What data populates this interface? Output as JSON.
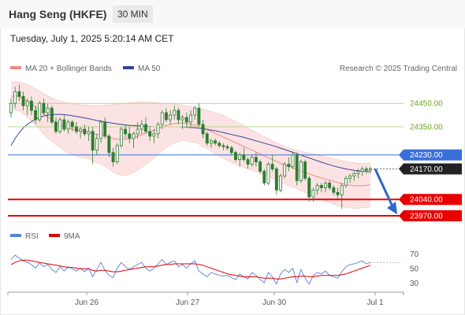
{
  "header": {
    "title": "Hang Seng (HKFE)",
    "timeframe": "30 MIN",
    "datetime": "Tuesday, July 1, 2025 5:20:14 AM CET"
  },
  "legend": {
    "bollinger": "MA 20 + Bollinger Bands",
    "ma50": "MA 50",
    "credit": "Research © 2025 Trading Central",
    "rsi": "RSI",
    "rsi_ma": "9MA"
  },
  "colors": {
    "bollinger": "#f08a8a",
    "band_fill": "#fbdada",
    "ma50": "#33449a",
    "support": "#e80000",
    "resistance": "#b7d98c",
    "pivot": "#3b6fd8",
    "candle_up": "#2e7d32",
    "candle_down": "#2e7d32",
    "rsi": "#5a7fd8",
    "rsi_ma": "#e00000"
  },
  "chart_data": {
    "type": "candlestick",
    "x_labels": [
      "Jun 26",
      "Jun 27",
      "Jun 30",
      "Jul 1"
    ],
    "ylim": [
      23950,
      24555
    ],
    "levels": [
      {
        "value": 24450,
        "label": "24450.00",
        "kind": "resistance"
      },
      {
        "value": 24350,
        "label": "24350.00",
        "kind": "resistance"
      },
      {
        "value": 24230,
        "label": "24230.00",
        "kind": "pivot"
      },
      {
        "value": 24170,
        "label": "24170.00",
        "kind": "current"
      },
      {
        "value": 24040,
        "label": "24040.00",
        "kind": "support"
      },
      {
        "value": 23970,
        "label": "23970.00",
        "kind": "support"
      }
    ],
    "forecast": {
      "from": 24170,
      "to": 23990
    },
    "candles": [
      [
        24410,
        24470,
        24390,
        24450
      ],
      [
        24450,
        24520,
        24430,
        24500
      ],
      [
        24500,
        24530,
        24460,
        24480
      ],
      [
        24480,
        24500,
        24420,
        24440
      ],
      [
        24440,
        24470,
        24400,
        24460
      ],
      [
        24460,
        24480,
        24400,
        24420
      ],
      [
        24420,
        24440,
        24360,
        24380
      ],
      [
        24380,
        24460,
        24370,
        24450
      ],
      [
        24450,
        24470,
        24400,
        24410
      ],
      [
        24410,
        24450,
        24370,
        24430
      ],
      [
        24430,
        24440,
        24360,
        24370
      ],
      [
        24370,
        24390,
        24320,
        24330
      ],
      [
        24330,
        24390,
        24320,
        24380
      ],
      [
        24380,
        24400,
        24330,
        24340
      ],
      [
        24340,
        24380,
        24320,
        24370
      ],
      [
        24370,
        24380,
        24330,
        24350
      ],
      [
        24350,
        24370,
        24320,
        24330
      ],
      [
        24330,
        24350,
        24300,
        24340
      ],
      [
        24340,
        24360,
        24310,
        24320
      ],
      [
        24320,
        24350,
        24290,
        24330
      ],
      [
        24330,
        24350,
        24190,
        24250
      ],
      [
        24250,
        24320,
        24230,
        24300
      ],
      [
        24300,
        24380,
        24280,
        24370
      ],
      [
        24370,
        24390,
        24300,
        24310
      ],
      [
        24310,
        24320,
        24220,
        24240
      ],
      [
        24240,
        24260,
        24180,
        24200
      ],
      [
        24200,
        24280,
        24190,
        24270
      ],
      [
        24270,
        24350,
        24260,
        24340
      ],
      [
        24340,
        24360,
        24300,
        24320
      ],
      [
        24320,
        24350,
        24280,
        24300
      ],
      [
        24300,
        24330,
        24260,
        24320
      ],
      [
        24320,
        24370,
        24300,
        24340
      ],
      [
        24340,
        24380,
        24320,
        24360
      ],
      [
        24360,
        24390,
        24320,
        24330
      ],
      [
        24330,
        24350,
        24290,
        24310
      ],
      [
        24310,
        24340,
        24280,
        24320
      ],
      [
        24320,
        24370,
        24300,
        24360
      ],
      [
        24360,
        24420,
        24340,
        24410
      ],
      [
        24410,
        24430,
        24370,
        24380
      ],
      [
        24380,
        24420,
        24360,
        24400
      ],
      [
        24400,
        24440,
        24380,
        24420
      ],
      [
        24420,
        24430,
        24360,
        24380
      ],
      [
        24380,
        24400,
        24340,
        24390
      ],
      [
        24390,
        24410,
        24350,
        24370
      ],
      [
        24370,
        24420,
        24350,
        24400
      ],
      [
        24400,
        24440,
        24380,
        24430
      ],
      [
        24430,
        24450,
        24350,
        24360
      ],
      [
        24360,
        24380,
        24300,
        24320
      ],
      [
        24320,
        24330,
        24270,
        24280
      ],
      [
        24280,
        24300,
        24260,
        24290
      ],
      [
        24290,
        24300,
        24270,
        24280
      ],
      [
        24280,
        24290,
        24260,
        24270
      ],
      [
        24270,
        24280,
        24250,
        24265
      ],
      [
        24265,
        24275,
        24250,
        24260
      ],
      [
        24260,
        24270,
        24230,
        24240
      ],
      [
        24240,
        24250,
        24200,
        24210
      ],
      [
        24210,
        24240,
        24180,
        24230
      ],
      [
        24230,
        24260,
        24200,
        24210
      ],
      [
        24210,
        24220,
        24170,
        24190
      ],
      [
        24190,
        24230,
        24180,
        24220
      ],
      [
        24220,
        24240,
        24180,
        24200
      ],
      [
        24200,
        24210,
        24150,
        24160
      ],
      [
        24160,
        24170,
        24100,
        24110
      ],
      [
        24110,
        24200,
        24100,
        24190
      ],
      [
        24190,
        24230,
        24160,
        24170
      ],
      [
        24170,
        24180,
        24060,
        24080
      ],
      [
        24080,
        24150,
        24070,
        24140
      ],
      [
        24140,
        24200,
        24130,
        24190
      ],
      [
        24190,
        24220,
        24160,
        24180
      ],
      [
        24180,
        24240,
        24170,
        24230
      ],
      [
        24230,
        24240,
        24100,
        24120
      ],
      [
        24120,
        24210,
        24110,
        24200
      ],
      [
        24200,
        24210,
        24120,
        24130
      ],
      [
        24130,
        24140,
        24030,
        24050
      ],
      [
        24050,
        24090,
        24030,
        24080
      ],
      [
        24080,
        24110,
        24060,
        24100
      ],
      [
        24100,
        24110,
        24070,
        24090
      ],
      [
        24090,
        24120,
        24070,
        24110
      ],
      [
        24110,
        24120,
        24080,
        24090
      ],
      [
        24090,
        24100,
        24060,
        24070
      ],
      [
        24070,
        24090,
        24040,
        24060
      ],
      [
        24060,
        24110,
        24000,
        24100
      ],
      [
        24100,
        24140,
        24090,
        24130
      ],
      [
        24130,
        24150,
        24110,
        24140
      ],
      [
        24140,
        24160,
        24120,
        24150
      ],
      [
        24150,
        24170,
        24130,
        24160
      ],
      [
        24160,
        24180,
        24140,
        24170
      ],
      [
        24170,
        24180,
        24150,
        24165
      ],
      [
        24165,
        24180,
        24150,
        24170
      ]
    ],
    "ma20": [
      24480,
      24482,
      24478,
      24470,
      24460,
      24448,
      24435,
      24420,
      24405,
      24392,
      24380,
      24370,
      24360,
      24352,
      24345,
      24340,
      24336,
      24332,
      24330,
      24328,
      24322,
      24318,
      24316,
      24312,
      24306,
      24300,
      24297,
      24296,
      24297,
      24300,
      24305,
      24310,
      24316,
      24322,
      24328,
      24335,
      24342,
      24350,
      24355,
      24360,
      24364,
      24366,
      24366,
      24364,
      24361,
      24357,
      24352,
      24345,
      24338,
      24330,
      24322,
      24314,
      24306,
      24298,
      24290,
      24282,
      24274,
      24266,
      24258,
      24250,
      24242,
      24234,
      24226,
      24218,
      24210,
      24202,
      24194,
      24187,
      24180,
      24174,
      24168,
      24162,
      24156,
      24149,
      24143,
      24137,
      24132,
      24127,
      24122,
      24117,
      24112,
      24108,
      24104,
      24101,
      24099,
      24098,
      24099,
      24100,
      24102
    ],
    "bb_upper": [
      24540,
      24542,
      24540,
      24536,
      24530,
      24522,
      24512,
      24502,
      24492,
      24482,
      24473,
      24466,
      24460,
      24455,
      24451,
      24448,
      24446,
      24444,
      24443,
      24442,
      24440,
      24440,
      24441,
      24442,
      24443,
      24445,
      24447,
      24449,
      24451,
      24453,
      24454,
      24455,
      24455,
      24455,
      24454,
      24453,
      24452,
      24451,
      24450,
      24449,
      24447,
      24445,
      24442,
      24439,
      24436,
      24432,
      24428,
      24424,
      24420,
      24415,
      24410,
      24405,
      24398,
      24390,
      24382,
      24373,
      24364,
      24355,
      24345,
      24335,
      24326,
      24317,
      24308,
      24299,
      24290,
      24282,
      24274,
      24267,
      24261,
      24255,
      24250,
      24246,
      24242,
      24238,
      24234,
      24230,
      24226,
      24222,
      24218,
      24214,
      24210,
      24206,
      24202,
      24198,
      24196,
      24194,
      24193,
      24194,
      24196
    ],
    "bb_lower": [
      24420,
      24422,
      24416,
      24404,
      24390,
      24374,
      24358,
      24338,
      24318,
      24302,
      24287,
      24274,
      24260,
      24249,
      24239,
      24232,
      24226,
      24220,
      24217,
      24214,
      24204,
      24196,
      24191,
      24182,
      24169,
      24155,
      24147,
      24143,
      24143,
      24147,
      24156,
      24165,
      24177,
      24189,
      24202,
      24217,
      24232,
      24249,
      24260,
      24271,
      24281,
      24287,
      24290,
      24289,
      24286,
      24282,
      24276,
      24266,
      24256,
      24245,
      24234,
      24223,
      24214,
      24206,
      24198,
      24191,
      24184,
      24177,
      24171,
      24165,
      24158,
      24151,
      24144,
      24137,
      24130,
      24122,
      24114,
      24107,
      24099,
      24093,
      24086,
      24078,
      24070,
      24060,
      24052,
      24044,
      24038,
      24032,
      24026,
      24020,
      24014,
      24010,
      24006,
      24004,
      24002,
      24002,
      24005,
      24006,
      24008
    ],
    "ma50": [
      24270,
      24300,
      24325,
      24345,
      24360,
      24372,
      24382,
      24390,
      24396,
      24400,
      24402,
      24403,
      24403,
      24402,
      24400,
      24397,
      24394,
      24391,
      24388,
      24385,
      24381,
      24377,
      24374,
      24371,
      24368,
      24365,
      24362,
      24360,
      24358,
      24356,
      24355,
      24354,
      24353,
      24352,
      24351,
      24350,
      24350,
      24350,
      24350,
      24350,
      24350,
      24350,
      24349,
      24348,
      24347,
      24346,
      24344,
      24342,
      24339,
      24336,
      24333,
      24329,
      24325,
      24321,
      24317,
      24313,
      24309,
      24305,
      24300,
      24295,
      24290,
      24285,
      24280,
      24275,
      24270,
      24265,
      24259,
      24253,
      24247,
      24241,
      24235,
      24229,
      24223,
      24217,
      24211,
      24205,
      24199,
      24193,
      24188,
      24183,
      24178,
      24174,
      24170,
      24167,
      24164,
      24162,
      24160,
      24159,
      24158
    ],
    "rsi": {
      "ticks": [
        "70",
        "50",
        "30"
      ],
      "ylim": [
        20,
        80
      ],
      "values": [
        62,
        68,
        64,
        60,
        58,
        55,
        50,
        57,
        52,
        55,
        48,
        44,
        52,
        46,
        52,
        49,
        46,
        50,
        45,
        50,
        38,
        48,
        58,
        47,
        40,
        37,
        50,
        58,
        52,
        48,
        52,
        55,
        58,
        50,
        46,
        50,
        56,
        62,
        55,
        58,
        60,
        52,
        55,
        50,
        56,
        60,
        46,
        42,
        38,
        44,
        42,
        40,
        39,
        40,
        37,
        34,
        42,
        38,
        35,
        44,
        40,
        34,
        30,
        44,
        38,
        28,
        42,
        48,
        44,
        50,
        30,
        48,
        36,
        28,
        40,
        44,
        42,
        46,
        40,
        38,
        36,
        45,
        52,
        55,
        56,
        58,
        60,
        56,
        58
      ],
      "ma": [
        55,
        58,
        60,
        61,
        61,
        60,
        59,
        58,
        57,
        56,
        55,
        54,
        53,
        52,
        51,
        51,
        50,
        49,
        49,
        49,
        47,
        46,
        47,
        47,
        46,
        45,
        45,
        46,
        47,
        48,
        49,
        50,
        51,
        52,
        52,
        52,
        53,
        54,
        55,
        55,
        56,
        56,
        56,
        56,
        56,
        56,
        55,
        54,
        52,
        50,
        48,
        46,
        44,
        42,
        41,
        40,
        39,
        38,
        38,
        38,
        38,
        37,
        36,
        36,
        36,
        35,
        35,
        36,
        37,
        38,
        38,
        39,
        39,
        38,
        38,
        39,
        40,
        40,
        40,
        40,
        40,
        41,
        42,
        44,
        46,
        48,
        50,
        52,
        54
      ]
    }
  }
}
